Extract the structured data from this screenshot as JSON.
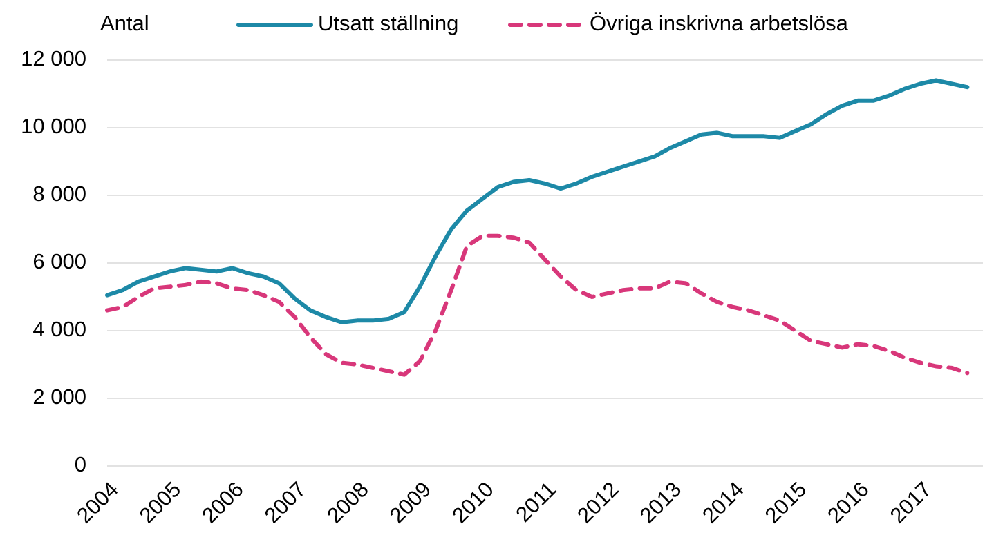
{
  "chart_data": {
    "type": "line",
    "y_axis_label": "Antal",
    "categories": [
      "2004",
      null,
      null,
      null,
      "2005",
      null,
      null,
      null,
      "2006",
      null,
      null,
      null,
      "2007",
      null,
      null,
      null,
      "2008",
      null,
      null,
      null,
      "2009",
      null,
      null,
      null,
      "2010",
      null,
      null,
      null,
      "2011",
      null,
      null,
      null,
      "2012",
      null,
      null,
      null,
      "2013",
      null,
      null,
      null,
      "2014",
      null,
      null,
      null,
      "2015",
      null,
      null,
      null,
      "2016",
      null,
      null,
      null,
      "2017",
      null,
      null,
      null
    ],
    "series": [
      {
        "name": "Utsatt ställning",
        "color": "#1d89a7",
        "style": "solid",
        "values": [
          5050,
          5200,
          5450,
          5600,
          5750,
          5850,
          5800,
          5750,
          5850,
          5700,
          5600,
          5400,
          4950,
          4600,
          4400,
          4250,
          4300,
          4300,
          4350,
          4550,
          5300,
          6200,
          7000,
          7550,
          7900,
          8250,
          8400,
          8450,
          8350,
          8200,
          8350,
          8550,
          8700,
          8850,
          9000,
          9150,
          9400,
          9600,
          9800,
          9850,
          9750,
          9750,
          9750,
          9700,
          9900,
          10100,
          10400,
          10650,
          10800,
          10800,
          10950,
          11150,
          11300,
          11400,
          11300,
          11200
        ]
      },
      {
        "name": "Övriga inskrivna arbetslösa",
        "color": "#d8377a",
        "style": "dashed",
        "values": [
          4600,
          4700,
          5000,
          5250,
          5300,
          5350,
          5450,
          5400,
          5250,
          5200,
          5050,
          4850,
          4400,
          3800,
          3300,
          3050,
          3000,
          2900,
          2800,
          2700,
          3100,
          4000,
          5200,
          6500,
          6800,
          6800,
          6750,
          6600,
          6100,
          5600,
          5200,
          5000,
          5100,
          5200,
          5250,
          5250,
          5450,
          5400,
          5100,
          4850,
          4700,
          4600,
          4450,
          4300,
          4000,
          3700,
          3600,
          3500,
          3600,
          3550,
          3400,
          3200,
          3050,
          2950,
          2900,
          2750
        ]
      }
    ],
    "ylim": [
      0,
      12000
    ],
    "yticks": [
      0,
      {
        "value": 2000,
        "label": "2 000"
      },
      {
        "value": 4000,
        "label": "4 000"
      },
      {
        "value": 6000,
        "label": "6 000"
      },
      {
        "value": 8000,
        "label": "8 000"
      },
      {
        "value": 10000,
        "label": "10 000"
      },
      {
        "value": 12000,
        "label": "12 000"
      }
    ],
    "grid": true
  }
}
